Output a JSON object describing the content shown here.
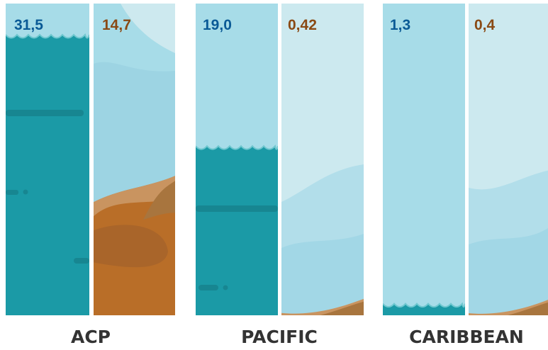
{
  "chart_data": {
    "type": "bar",
    "categories": [
      "ACP",
      "PACIFIC",
      "CARIBBEAN"
    ],
    "ylim": [
      0,
      35
    ],
    "series": [
      {
        "values": [
          31.5,
          19.0,
          1.3
        ],
        "labels": [
          "31,5",
          "19,0",
          "1,3"
        ],
        "style": "water"
      },
      {
        "values": [
          14.7,
          0.42,
          0.4
        ],
        "labels": [
          "14,7",
          "0,42",
          "0,4"
        ],
        "style": "land"
      }
    ],
    "title": "",
    "xlabel": "",
    "ylabel": ""
  },
  "colors": {
    "sky": "#a7dce8",
    "water": "#1b9aa6",
    "land": "#b96e28",
    "water_label": "#0a5a96",
    "land_label": "#8a4a14"
  }
}
